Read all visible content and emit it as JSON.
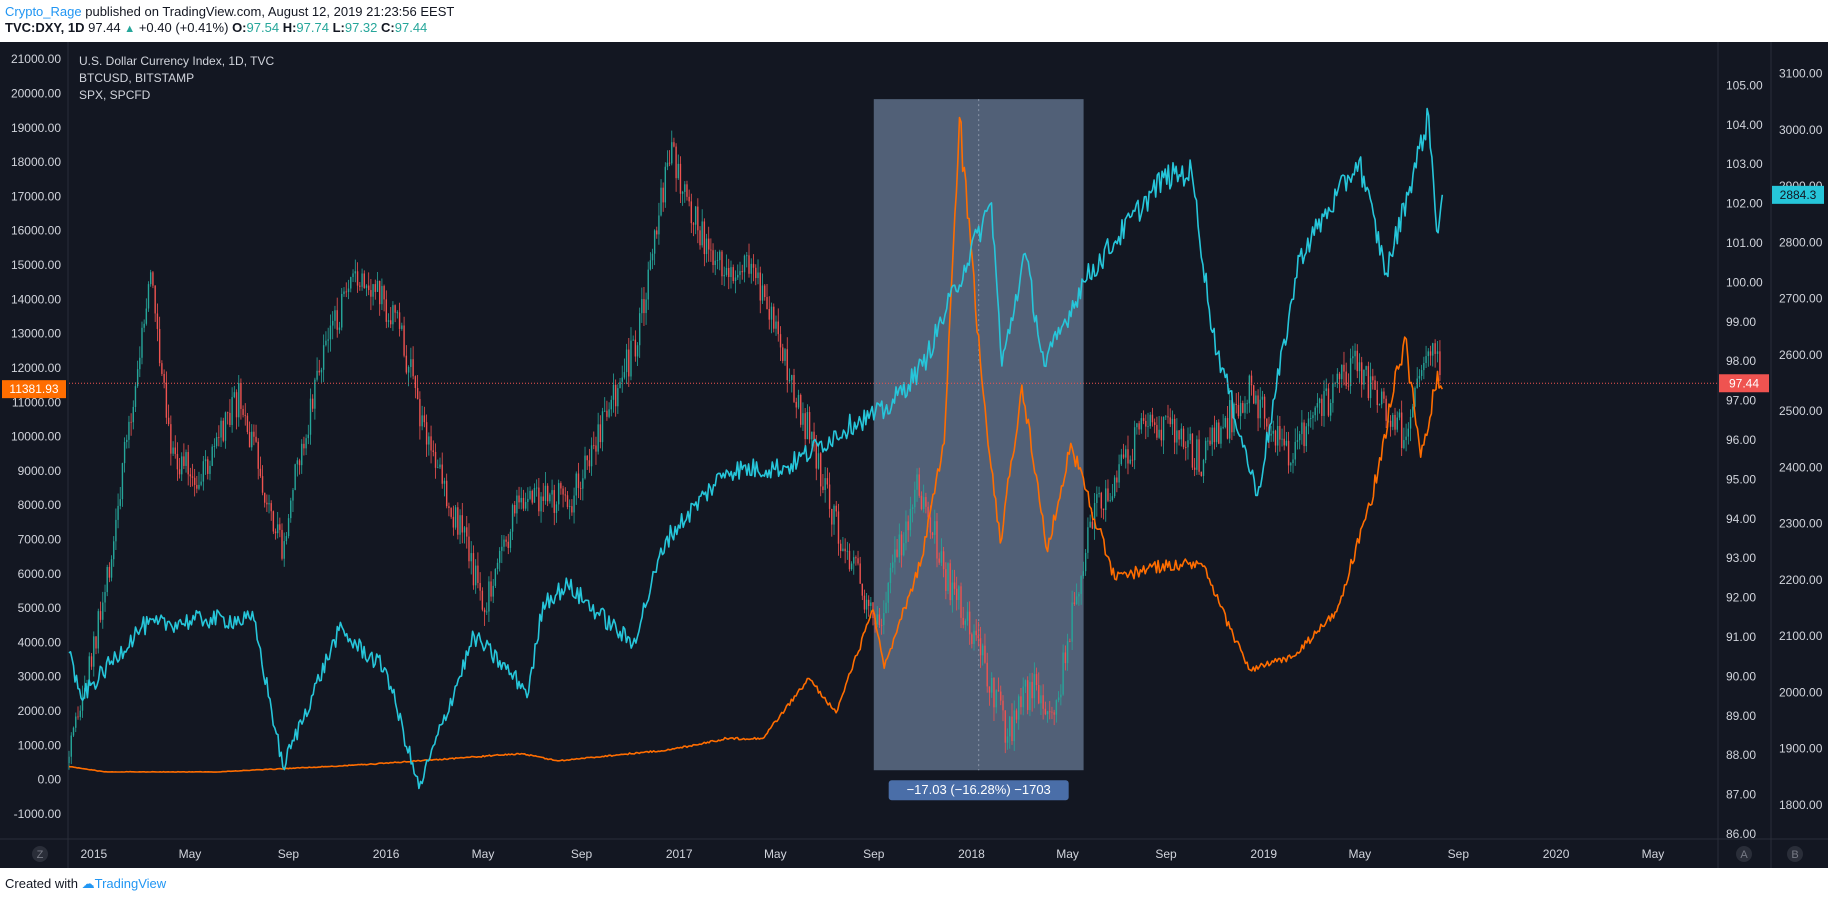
{
  "header": {
    "author": "Crypto_Rage",
    "published_text": "published on TradingView.com, August 12, 2019 21:23:56 EEST",
    "symbol": "TVC:DXY",
    "interval": "1D",
    "last": "97.44",
    "change": "+0.40 (+0.41%)",
    "o_label": "O:",
    "o_value": "97.54",
    "h_label": "H:",
    "h_value": "97.74",
    "l_label": "L:",
    "l_value": "97.32",
    "c_label": "C:",
    "c_value": "97.44"
  },
  "footer": {
    "created_with": "Created with",
    "brand": "TradingView"
  },
  "colors": {
    "background": "#131722",
    "dxy_up": "#26a69a",
    "dxy_down": "#ef5350",
    "btc": "#ff6d00",
    "spx": "#26c6da",
    "range_box": "#5d6d86",
    "range_label_bg": "#4a6ea8",
    "price_line": "#ef5350"
  },
  "chart_data": {
    "type": "line",
    "legend": [
      "U.S. Dollar Currency Index, 1D, TVC",
      "BTCUSD, BITSTAMP",
      "SPX, SPCFD"
    ],
    "x_tick_labels": [
      "2015",
      "May",
      "Sep",
      "2016",
      "May",
      "Sep",
      "2017",
      "May",
      "Sep",
      "2018",
      "May",
      "Sep",
      "2019",
      "May",
      "Sep",
      "2020",
      "May"
    ],
    "x_range": [
      "2014-12-01",
      "2020-07-20"
    ],
    "left_axis": {
      "series": "BTCUSD",
      "ticks": [
        "21000.00",
        "20000.00",
        "19000.00",
        "18000.00",
        "17000.00",
        "16000.00",
        "15000.00",
        "14000.00",
        "13000.00",
        "12000.00",
        "11000.00",
        "10000.00",
        "9000.00",
        "8000.00",
        "7000.00",
        "6000.00",
        "5000.00",
        "4000.00",
        "3000.00",
        "2000.00",
        "1000.00",
        "0.00",
        "-1000.00"
      ],
      "ylim": [
        -1700,
        21500
      ],
      "current_value": "11381.93"
    },
    "right_axis_dxy": {
      "series": "DXY",
      "ticks": [
        "105.00",
        "104.00",
        "103.00",
        "102.00",
        "101.00",
        "100.00",
        "99.00",
        "98.00",
        "97.00",
        "96.00",
        "95.00",
        "94.00",
        "93.00",
        "92.00",
        "91.00",
        "90.00",
        "89.00",
        "88.00",
        "87.00",
        "86.00"
      ],
      "ylim": [
        85.9,
        106.1
      ],
      "current_value": "97.44"
    },
    "right_axis_spx": {
      "series": "SPX",
      "ticks": [
        "3100.00",
        "3000.00",
        "2900.00",
        "2800.00",
        "2700.00",
        "2600.00",
        "2500.00",
        "2400.00",
        "2300.00",
        "2200.00",
        "2100.00",
        "2000.00",
        "1900.00",
        "1800.00"
      ],
      "ylim": [
        1741,
        3156
      ],
      "current_value": "2884.3"
    },
    "series": [
      {
        "name": "U.S. Dollar Currency Index, 1D, TVC",
        "render": "candles",
        "x": [
          "2014-12-01",
          "2015-01-15",
          "2015-03-13",
          "2015-04-10",
          "2015-05-15",
          "2015-07-01",
          "2015-08-24",
          "2015-10-15",
          "2015-12-02",
          "2016-01-15",
          "2016-02-15",
          "2016-05-03",
          "2016-06-15",
          "2016-08-20",
          "2016-11-10",
          "2016-12-20",
          "2017-02-15",
          "2017-04-01",
          "2017-05-30",
          "2017-07-30",
          "2017-09-08",
          "2017-10-25",
          "2017-11-30",
          "2018-01-15",
          "2018-02-15",
          "2018-03-15",
          "2018-04-17",
          "2018-06-01",
          "2018-08-15",
          "2018-10-15",
          "2018-12-14",
          "2019-02-01",
          "2019-04-25",
          "2019-06-25",
          "2019-07-31",
          "2019-08-12"
        ],
        "values": [
          87.8,
          92.0,
          100.2,
          95.6,
          95.0,
          97.0,
          93.4,
          98.4,
          100.3,
          99.0,
          96.5,
          91.9,
          94.5,
          94.6,
          98.5,
          103.3,
          100.3,
          100.6,
          97.0,
          93.0,
          91.4,
          95.0,
          92.6,
          90.5,
          88.5,
          89.7,
          89.3,
          94.2,
          96.6,
          95.5,
          97.3,
          95.5,
          98.0,
          96.1,
          98.6,
          97.44
        ]
      },
      {
        "name": "BTCUSD, BITSTAMP",
        "render": "line",
        "x": [
          "2014-12-01",
          "2015-01-14",
          "2015-06-01",
          "2015-11-04",
          "2015-12-15",
          "2016-06-18",
          "2016-08-02",
          "2016-12-20",
          "2017-03-01",
          "2017-04-15",
          "2017-06-12",
          "2017-07-16",
          "2017-08-31",
          "2017-09-14",
          "2017-10-31",
          "2017-11-28",
          "2017-12-17",
          "2018-01-16",
          "2018-02-06",
          "2018-03-05",
          "2018-04-06",
          "2018-05-05",
          "2018-06-29",
          "2018-08-14",
          "2018-10-15",
          "2018-11-20",
          "2018-12-15",
          "2019-02-08",
          "2019-04-02",
          "2019-05-14",
          "2019-06-26",
          "2019-07-16",
          "2019-08-06",
          "2019-08-12"
        ],
        "values": [
          380,
          230,
          225,
          400,
          455,
          760,
          550,
          870,
          1200,
          1200,
          2950,
          1950,
          4950,
          3250,
          6450,
          9800,
          19300,
          11200,
          6900,
          11500,
          6650,
          9800,
          5850,
          6200,
          6300,
          4400,
          3200,
          3600,
          4900,
          8000,
          12900,
          9400,
          11900,
          11381.93
        ]
      },
      {
        "name": "SPX, SPCFD",
        "render": "line",
        "x": [
          "2014-12-01",
          "2014-12-16",
          "2015-03-02",
          "2015-05-21",
          "2015-07-20",
          "2015-08-25",
          "2015-11-03",
          "2016-01-01",
          "2016-02-11",
          "2016-04-20",
          "2016-06-27",
          "2016-07-15",
          "2016-08-15",
          "2016-11-04",
          "2016-12-15",
          "2017-03-01",
          "2017-05-15",
          "2017-08-08",
          "2017-09-15",
          "2017-11-01",
          "2018-01-26",
          "2018-02-08",
          "2018-03-09",
          "2018-04-02",
          "2018-05-21",
          "2018-08-29",
          "2018-10-03",
          "2018-10-29",
          "2018-12-24",
          "2019-02-15",
          "2019-04-30",
          "2019-06-03",
          "2019-07-26",
          "2019-08-05",
          "2019-08-12"
        ],
        "values": [
          2070,
          1990,
          2117,
          2130,
          2128,
          1867,
          2110,
          2040,
          1829,
          2100,
          2000,
          2160,
          2190,
          2085,
          2270,
          2395,
          2400,
          2480,
          2500,
          2580,
          2870,
          2580,
          2780,
          2580,
          2730,
          2915,
          2925,
          2640,
          2350,
          2775,
          2945,
          2745,
          3025,
          2820,
          2884.3
        ]
      }
    ],
    "measurement": {
      "label": "−17.03 (−16.28%) −1703",
      "x_start": "2017-09-01",
      "x_end": "2018-05-21",
      "top_value_dxy": 104.65,
      "bottom_value_dxy": 87.62
    }
  },
  "bottom_buttons": {
    "left": "Z",
    "right_a": "A",
    "right_b": "B"
  }
}
